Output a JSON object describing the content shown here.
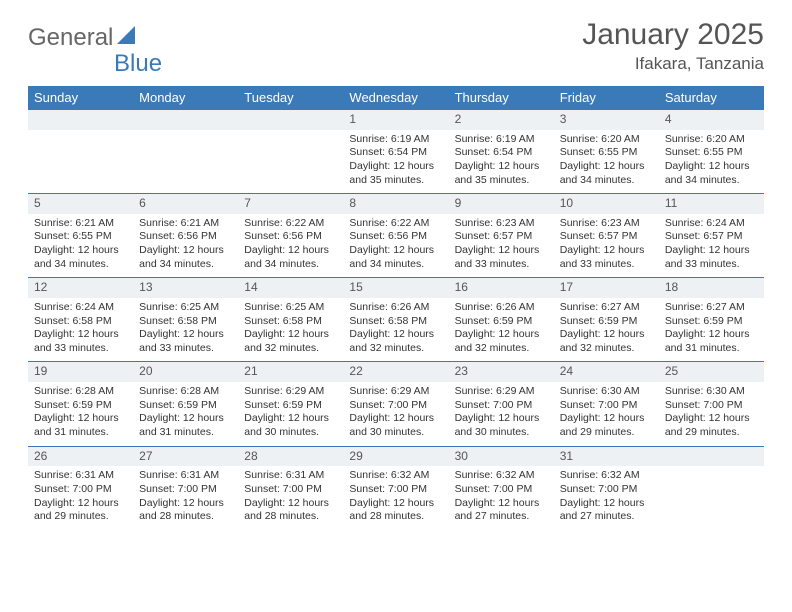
{
  "logo": {
    "general": "General",
    "blue": "Blue"
  },
  "title": "January 2025",
  "location": "Ifakara, Tanzania",
  "colors": {
    "header_bg": "#3a7ab8",
    "header_text": "#ffffff",
    "daynum_bg": "#eef1f4",
    "row_divider": "#3a7ab8",
    "body_text": "#333333",
    "title_text": "#555555",
    "background": "#ffffff"
  },
  "fonts": {
    "title_size": 30,
    "location_size": 17,
    "weekday_size": 13,
    "daynum_size": 12,
    "cell_size": 10.5
  },
  "weekdays": [
    "Sunday",
    "Monday",
    "Tuesday",
    "Wednesday",
    "Thursday",
    "Friday",
    "Saturday"
  ],
  "weeks": [
    [
      null,
      null,
      null,
      {
        "n": "1",
        "sr": "6:19 AM",
        "ss": "6:54 PM",
        "dl": "12 hours and 35 minutes."
      },
      {
        "n": "2",
        "sr": "6:19 AM",
        "ss": "6:54 PM",
        "dl": "12 hours and 35 minutes."
      },
      {
        "n": "3",
        "sr": "6:20 AM",
        "ss": "6:55 PM",
        "dl": "12 hours and 34 minutes."
      },
      {
        "n": "4",
        "sr": "6:20 AM",
        "ss": "6:55 PM",
        "dl": "12 hours and 34 minutes."
      }
    ],
    [
      {
        "n": "5",
        "sr": "6:21 AM",
        "ss": "6:55 PM",
        "dl": "12 hours and 34 minutes."
      },
      {
        "n": "6",
        "sr": "6:21 AM",
        "ss": "6:56 PM",
        "dl": "12 hours and 34 minutes."
      },
      {
        "n": "7",
        "sr": "6:22 AM",
        "ss": "6:56 PM",
        "dl": "12 hours and 34 minutes."
      },
      {
        "n": "8",
        "sr": "6:22 AM",
        "ss": "6:56 PM",
        "dl": "12 hours and 34 minutes."
      },
      {
        "n": "9",
        "sr": "6:23 AM",
        "ss": "6:57 PM",
        "dl": "12 hours and 33 minutes."
      },
      {
        "n": "10",
        "sr": "6:23 AM",
        "ss": "6:57 PM",
        "dl": "12 hours and 33 minutes."
      },
      {
        "n": "11",
        "sr": "6:24 AM",
        "ss": "6:57 PM",
        "dl": "12 hours and 33 minutes."
      }
    ],
    [
      {
        "n": "12",
        "sr": "6:24 AM",
        "ss": "6:58 PM",
        "dl": "12 hours and 33 minutes."
      },
      {
        "n": "13",
        "sr": "6:25 AM",
        "ss": "6:58 PM",
        "dl": "12 hours and 33 minutes."
      },
      {
        "n": "14",
        "sr": "6:25 AM",
        "ss": "6:58 PM",
        "dl": "12 hours and 32 minutes."
      },
      {
        "n": "15",
        "sr": "6:26 AM",
        "ss": "6:58 PM",
        "dl": "12 hours and 32 minutes."
      },
      {
        "n": "16",
        "sr": "6:26 AM",
        "ss": "6:59 PM",
        "dl": "12 hours and 32 minutes."
      },
      {
        "n": "17",
        "sr": "6:27 AM",
        "ss": "6:59 PM",
        "dl": "12 hours and 32 minutes."
      },
      {
        "n": "18",
        "sr": "6:27 AM",
        "ss": "6:59 PM",
        "dl": "12 hours and 31 minutes."
      }
    ],
    [
      {
        "n": "19",
        "sr": "6:28 AM",
        "ss": "6:59 PM",
        "dl": "12 hours and 31 minutes."
      },
      {
        "n": "20",
        "sr": "6:28 AM",
        "ss": "6:59 PM",
        "dl": "12 hours and 31 minutes."
      },
      {
        "n": "21",
        "sr": "6:29 AM",
        "ss": "6:59 PM",
        "dl": "12 hours and 30 minutes."
      },
      {
        "n": "22",
        "sr": "6:29 AM",
        "ss": "7:00 PM",
        "dl": "12 hours and 30 minutes."
      },
      {
        "n": "23",
        "sr": "6:29 AM",
        "ss": "7:00 PM",
        "dl": "12 hours and 30 minutes."
      },
      {
        "n": "24",
        "sr": "6:30 AM",
        "ss": "7:00 PM",
        "dl": "12 hours and 29 minutes."
      },
      {
        "n": "25",
        "sr": "6:30 AM",
        "ss": "7:00 PM",
        "dl": "12 hours and 29 minutes."
      }
    ],
    [
      {
        "n": "26",
        "sr": "6:31 AM",
        "ss": "7:00 PM",
        "dl": "12 hours and 29 minutes."
      },
      {
        "n": "27",
        "sr": "6:31 AM",
        "ss": "7:00 PM",
        "dl": "12 hours and 28 minutes."
      },
      {
        "n": "28",
        "sr": "6:31 AM",
        "ss": "7:00 PM",
        "dl": "12 hours and 28 minutes."
      },
      {
        "n": "29",
        "sr": "6:32 AM",
        "ss": "7:00 PM",
        "dl": "12 hours and 28 minutes."
      },
      {
        "n": "30",
        "sr": "6:32 AM",
        "ss": "7:00 PM",
        "dl": "12 hours and 27 minutes."
      },
      {
        "n": "31",
        "sr": "6:32 AM",
        "ss": "7:00 PM",
        "dl": "12 hours and 27 minutes."
      },
      null
    ]
  ],
  "labels": {
    "sunrise": "Sunrise:",
    "sunset": "Sunset:",
    "daylight": "Daylight:"
  }
}
